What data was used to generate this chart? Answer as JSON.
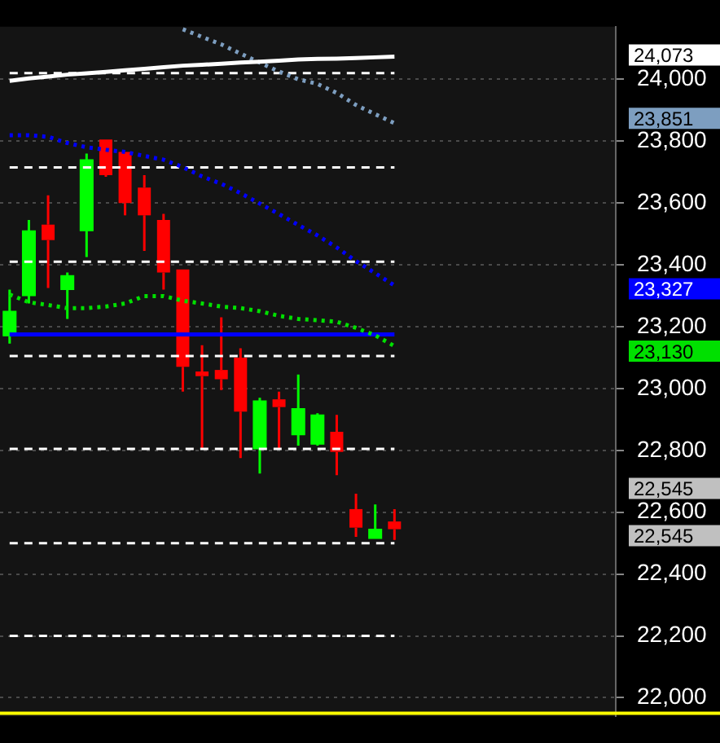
{
  "chart_data": {
    "type": "candlestick",
    "categories": [
      null,
      null,
      null,
      null,
      null,
      null,
      null,
      null,
      null,
      null,
      null,
      null,
      null,
      null,
      null,
      null,
      null,
      null,
      null,
      null,
      null,
      null,
      null,
      null,
      null,
      null,
      null,
      null,
      null,
      null,
      null,
      null
    ],
    "ohlc": [
      [
        23170,
        23320,
        23145,
        23250
      ],
      [
        23300,
        23545,
        23275,
        23510
      ],
      [
        23530,
        23625,
        23325,
        23480
      ],
      [
        23320,
        23375,
        23225,
        23365
      ],
      [
        23510,
        23760,
        23425,
        23740
      ],
      [
        23805,
        23805,
        23685,
        23690
      ],
      [
        23765,
        23765,
        23560,
        23600
      ],
      [
        23650,
        23690,
        23445,
        23560
      ],
      [
        23545,
        23565,
        23320,
        23375
      ],
      [
        23385,
        23385,
        22990,
        23070
      ],
      [
        23055,
        23140,
        22805,
        23040
      ],
      [
        23060,
        23230,
        22995,
        23030
      ],
      [
        23100,
        23130,
        22775,
        22925
      ],
      [
        22805,
        22970,
        22725,
        22960
      ],
      [
        22965,
        22990,
        22805,
        22940
      ],
      [
        22850,
        23045,
        22815,
        22935
      ],
      [
        22820,
        22920,
        22815,
        22915
      ],
      [
        22860,
        22915,
        22720,
        22795
      ],
      [
        22610,
        22660,
        22520,
        22550
      ],
      [
        22515,
        22625,
        22515,
        22545
      ],
      [
        22570,
        22610,
        22510,
        22545
      ],
      null,
      null,
      null,
      null,
      null,
      null,
      null,
      null,
      null,
      null,
      null
    ],
    "colors": [
      "#00ff00",
      "#00ff00",
      "#ff0000",
      "#00ff00",
      "#00ff00",
      "#ff0000",
      "#ff0000",
      "#ff0000",
      "#ff0000",
      "#ff0000",
      "#ff0000",
      "#ff0000",
      "#ff0000",
      "#00ff00",
      "#ff0000",
      "#00ff00",
      "#00ff00",
      "#ff0000",
      "#ff0000",
      "#00ff00",
      "#ff0000",
      null,
      null,
      null,
      null,
      null,
      null,
      null,
      null,
      null,
      null,
      null
    ],
    "series": [
      {
        "type": "line",
        "color": "#ffffff",
        "line_style": "solid",
        "values": [
          23995,
          24003,
          24009,
          24015,
          24019,
          24024,
          24029,
          24034,
          24039,
          24044,
          24047,
          24050,
          24054,
          24057,
          24060,
          24064,
          24066,
          24067,
          24069,
          24071,
          24073,
          null,
          null,
          null,
          null,
          null,
          null,
          null,
          null,
          null,
          null,
          null
        ]
      },
      {
        "type": "line",
        "color": "#7d9ec0",
        "line_style": "dotted",
        "values": [
          null,
          null,
          null,
          null,
          null,
          null,
          null,
          null,
          null,
          24162,
          24137,
          24113,
          24083,
          24054,
          24025,
          24000,
          23985,
          23956,
          23917,
          23887,
          23858,
          null,
          null,
          null,
          null,
          null,
          null,
          null,
          null,
          null,
          null,
          null
        ]
      },
      {
        "type": "line",
        "color": "#0000ff",
        "line_style": "dotted",
        "values": [
          23819,
          23819,
          23814,
          23794,
          23780,
          23772,
          23765,
          23752,
          23740,
          23716,
          23686,
          23662,
          23632,
          23598,
          23564,
          23529,
          23495,
          23456,
          23412,
          23373,
          23333,
          null,
          null,
          null,
          null,
          null,
          null,
          null,
          null,
          null,
          null,
          null
        ]
      },
      {
        "type": "line",
        "color": "#00e000",
        "line_style": "dotted",
        "values": [
          23304,
          23279,
          23270,
          23260,
          23260,
          23265,
          23275,
          23299,
          23299,
          23284,
          23275,
          23265,
          23260,
          23250,
          23235,
          23225,
          23221,
          23216,
          23196,
          23172,
          23137,
          null,
          null,
          null,
          null,
          null,
          null,
          null,
          null,
          null,
          null,
          null
        ]
      },
      {
        "type": "line",
        "color": "#0000ff",
        "line_style": "solid",
        "values": [
          23175,
          23175,
          23175,
          23175,
          23175,
          23175,
          23175,
          23175,
          23175,
          23175,
          23175,
          23175,
          23175,
          23175,
          23175,
          23175,
          23175,
          23175,
          23175,
          23175,
          23175,
          null,
          null,
          null,
          null,
          null,
          null,
          null,
          null,
          null,
          null,
          null
        ]
      },
      {
        "type": "line",
        "color": "#ffffff",
        "line_style": "dashed",
        "values": [
          24020,
          24020,
          24020,
          24020,
          24020,
          24020,
          24020,
          24020,
          24020,
          24020,
          24020,
          24020,
          24020,
          24020,
          24020,
          24020,
          24020,
          24020,
          24020,
          24020,
          24020,
          null,
          null,
          null,
          null,
          null,
          null,
          null,
          null,
          null,
          null,
          null
        ]
      },
      {
        "type": "line",
        "color": "#ffffff",
        "line_style": "dashed",
        "values": [
          23715,
          23715,
          23715,
          23715,
          23715,
          23715,
          23715,
          23715,
          23715,
          23715,
          23715,
          23715,
          23715,
          23715,
          23715,
          23715,
          23715,
          23715,
          23715,
          23715,
          23715,
          null,
          null,
          null,
          null,
          null,
          null,
          null,
          null,
          null,
          null,
          null
        ]
      },
      {
        "type": "line",
        "color": "#ffffff",
        "line_style": "dashed",
        "values": [
          23410,
          23410,
          23410,
          23410,
          23410,
          23410,
          23410,
          23410,
          23410,
          23410,
          23410,
          23410,
          23410,
          23410,
          23410,
          23410,
          23410,
          23410,
          23410,
          23410,
          23410,
          null,
          null,
          null,
          null,
          null,
          null,
          null,
          null,
          null,
          null,
          null
        ]
      },
      {
        "type": "line",
        "color": "#ffffff",
        "line_style": "dashed",
        "values": [
          23105,
          23105,
          23105,
          23105,
          23105,
          23105,
          23105,
          23105,
          23105,
          23105,
          23105,
          23105,
          23105,
          23105,
          23105,
          23105,
          23105,
          23105,
          23105,
          23105,
          23105,
          null,
          null,
          null,
          null,
          null,
          null,
          null,
          null,
          null,
          null,
          null
        ]
      },
      {
        "type": "line",
        "color": "#ffffff",
        "line_style": "dashed",
        "values": [
          22805,
          22805,
          22805,
          22805,
          22805,
          22805,
          22805,
          22805,
          22805,
          22805,
          22805,
          22805,
          22805,
          22805,
          22805,
          22805,
          22805,
          22805,
          22805,
          22805,
          22805,
          null,
          null,
          null,
          null,
          null,
          null,
          null,
          null,
          null,
          null,
          null
        ]
      },
      {
        "type": "line",
        "color": "#ffffff",
        "line_style": "dashed",
        "values": [
          22500,
          22500,
          22500,
          22500,
          22500,
          22500,
          22500,
          22500,
          22500,
          22500,
          22500,
          22500,
          22500,
          22500,
          22500,
          22500,
          22500,
          22500,
          22500,
          22500,
          22500,
          null,
          null,
          null,
          null,
          null,
          null,
          null,
          null,
          null,
          null,
          null
        ]
      },
      {
        "type": "line",
        "color": "#ffffff",
        "line_style": "dashed",
        "values": [
          22200,
          22200,
          22200,
          22200,
          22200,
          22200,
          22200,
          22200,
          22200,
          22200,
          22200,
          22200,
          22200,
          22200,
          22200,
          22200,
          22200,
          22200,
          22200,
          22200,
          22200,
          null,
          null,
          null,
          null,
          null,
          null,
          null,
          null,
          null,
          null,
          null
        ]
      }
    ],
    "ref_lines": [
      {
        "axis": "y",
        "value": 21950,
        "color": "#ffff00",
        "line_style": "solid"
      }
    ],
    "annotations": [
      "24,073",
      "23,851",
      "23,327",
      "23,130",
      "22,545",
      "22,545"
    ],
    "ylim": [
      21940,
      24170
    ],
    "yticks": [
      {
        "value": 22000,
        "label": "22,000"
      },
      {
        "value": 22200,
        "label": "22,200"
      },
      {
        "value": 22400,
        "label": "22,400"
      },
      {
        "value": 22600,
        "label": "22,600"
      },
      {
        "value": 22800,
        "label": "22,800"
      },
      {
        "value": 23000,
        "label": "23,000"
      },
      {
        "value": 23200,
        "label": "23,200"
      },
      {
        "value": 23400,
        "label": "23,400"
      },
      {
        "value": 23600,
        "label": "23,600"
      },
      {
        "value": 23800,
        "label": "23,800"
      },
      {
        "value": 24000,
        "label": "24,000"
      }
    ],
    "grid": "y",
    "tick_labels": "y"
  }
}
